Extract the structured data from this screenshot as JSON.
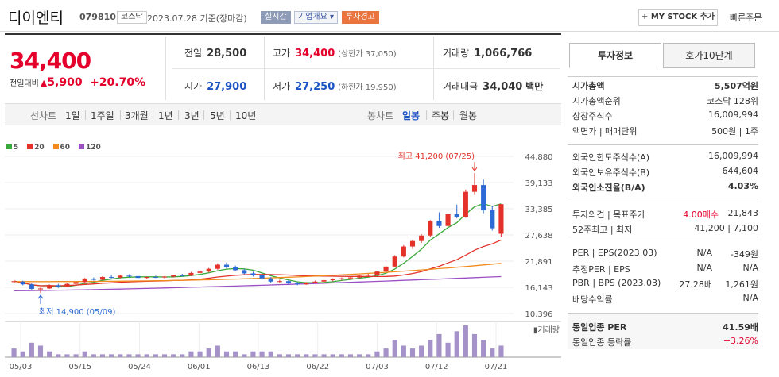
{
  "header": {
    "name": "디이엔티",
    "code": "079810",
    "market": "코스닥",
    "date": "2023.07.28  기준(장마감)",
    "realtime": "실시간",
    "overview": "기업개요 ▾",
    "warning": "투자경고",
    "mystock": "+ MY STOCK 추가",
    "quick_order": "빠른주문"
  },
  "price": {
    "current": "34,400",
    "diff_label": "전일대비",
    "diff_arrow": "▲",
    "diff": "5,900",
    "rate": "+20.70%"
  },
  "stats": {
    "prev_label": "전일",
    "prev": "28,500",
    "high_label": "고가",
    "high": "34,400",
    "upper_limit": "(상한가 37,050)",
    "volume_label": "거래량",
    "volume": "1,066,766",
    "open_label": "시가",
    "open": "27,900",
    "low_label": "저가",
    "low": "27,250",
    "lower_limit": "(하한가 19,950)",
    "amount_label": "거래대금",
    "amount": "34,040",
    "amount_unit": "백만"
  },
  "period_bar": {
    "left_label": "선차트",
    "left_items": [
      "1일",
      "1주일",
      "3개월",
      "1년",
      "3년",
      "5년",
      "10년"
    ],
    "right_label": "봉차트",
    "right_items": [
      "일봉",
      "주봉",
      "월봉"
    ],
    "active_right": "일봉"
  },
  "legend": [
    {
      "label": "5",
      "color": "#3aa83a"
    },
    {
      "label": "20",
      "color": "#e4322b"
    },
    {
      "label": "60",
      "color": "#f08c1e"
    },
    {
      "label": "120",
      "color": "#9b4fc4"
    }
  ],
  "chart_data": {
    "type": "candlestick",
    "high_annotation": "최고 41,200 (07/25)",
    "low_annotation": "최저 14,900 (05/09)",
    "y_ticks": [
      "44,880",
      "39,133",
      "33,385",
      "27,638",
      "21,891",
      "16,143",
      "10,396"
    ],
    "x_ticks": [
      "05/03",
      "05/15",
      "05/24",
      "06/01",
      "06/13",
      "06/22",
      "07/03",
      "07/12",
      "07/21"
    ],
    "volume_label": "거래량",
    "ylim": [
      10396,
      44880
    ],
    "candles": [
      [
        17300,
        17800,
        16900,
        17500
      ],
      [
        17400,
        17600,
        16600,
        16800
      ],
      [
        16800,
        17100,
        15600,
        15800
      ],
      [
        15700,
        16100,
        14900,
        15900
      ],
      [
        15900,
        16800,
        15800,
        16600
      ],
      [
        16600,
        16900,
        16000,
        16300
      ],
      [
        16300,
        17000,
        16200,
        16900
      ],
      [
        16900,
        17500,
        16700,
        17300
      ],
      [
        17300,
        18200,
        17100,
        18000
      ],
      [
        18000,
        18300,
        17600,
        17800
      ],
      [
        17800,
        18600,
        17700,
        18400
      ],
      [
        18400,
        18800,
        18100,
        18300
      ],
      [
        18300,
        18900,
        18100,
        18700
      ],
      [
        18700,
        19000,
        18400,
        18600
      ],
      [
        18600,
        18700,
        18000,
        18200
      ],
      [
        18200,
        18500,
        17900,
        18400
      ],
      [
        18400,
        18700,
        18200,
        18300
      ],
      [
        18300,
        18600,
        18100,
        18500
      ],
      [
        18500,
        18900,
        18300,
        18800
      ],
      [
        18800,
        19100,
        18500,
        18700
      ],
      [
        18700,
        19500,
        18600,
        19300
      ],
      [
        19300,
        19800,
        19100,
        19600
      ],
      [
        19600,
        20400,
        19400,
        20200
      ],
      [
        20200,
        21400,
        20000,
        21100
      ],
      [
        21100,
        21600,
        20300,
        20500
      ],
      [
        20500,
        20900,
        19700,
        19900
      ],
      [
        19900,
        20200,
        19000,
        19200
      ],
      [
        19200,
        19600,
        18500,
        18800
      ],
      [
        18800,
        19100,
        17800,
        18100
      ],
      [
        18100,
        18400,
        17200,
        17400
      ],
      [
        17400,
        17800,
        17000,
        17500
      ],
      [
        17500,
        17700,
        16800,
        17000
      ],
      [
        17000,
        17300,
        16600,
        16800
      ],
      [
        16800,
        17300,
        16700,
        17100
      ],
      [
        17100,
        17600,
        17000,
        17400
      ],
      [
        17400,
        17900,
        17300,
        17700
      ],
      [
        17700,
        18100,
        17500,
        17900
      ],
      [
        17900,
        18300,
        17700,
        18100
      ],
      [
        18100,
        18500,
        17900,
        18300
      ],
      [
        18300,
        18900,
        18100,
        18700
      ],
      [
        18700,
        19100,
        18400,
        18900
      ],
      [
        18900,
        19800,
        18800,
        19600
      ],
      [
        19600,
        20900,
        19500,
        20700
      ],
      [
        20700,
        23200,
        20600,
        22900
      ],
      [
        22900,
        25400,
        22700,
        25100
      ],
      [
        25100,
        26600,
        24600,
        26300
      ],
      [
        26300,
        27800,
        25900,
        27500
      ],
      [
        27500,
        30900,
        27300,
        30700
      ],
      [
        30700,
        32600,
        29200,
        29600
      ],
      [
        29600,
        32400,
        29400,
        32200
      ],
      [
        32200,
        34300,
        31300,
        31600
      ],
      [
        31600,
        37600,
        31400,
        37100
      ],
      [
        37100,
        41200,
        36400,
        38600
      ],
      [
        38600,
        39800,
        32400,
        33100
      ],
      [
        33100,
        34100,
        28600,
        29100
      ],
      [
        27900,
        34400,
        27250,
        34400
      ]
    ],
    "volumes": [
      3,
      2,
      5,
      4,
      2,
      1,
      1,
      1,
      2,
      1,
      1,
      1,
      1,
      1,
      1,
      1,
      1,
      1,
      1,
      1,
      2,
      2,
      3,
      4,
      2,
      2,
      1,
      2,
      2,
      2,
      1,
      1,
      1,
      1,
      1,
      1,
      1,
      1,
      1,
      1,
      1,
      2,
      3,
      6,
      4,
      3,
      4,
      6,
      8,
      5,
      9,
      11,
      8,
      6,
      3,
      4
    ]
  },
  "tabs": {
    "info": "투자정보",
    "quote": "호가10단계"
  },
  "info": {
    "market_cap_label": "시가총액",
    "market_cap": "5,507억원",
    "rank_label": "시가총액순위",
    "rank": "코스닥 128위",
    "shares_label": "상장주식수",
    "shares": "16,009,994",
    "par_label": "액면가 | 매매단위",
    "par": "500원 | 1주",
    "foreign_limit_label": "외국인한도주식수(A)",
    "foreign_limit": "16,009,994",
    "foreign_hold_label": "외국인보유주식수(B)",
    "foreign_hold": "644,604",
    "foreign_rate_label": "외국인소진율(B/A)",
    "foreign_rate": "4.03%",
    "opinion_label": "투자의견 | 목표주가",
    "opinion": "4.00매수",
    "target": "21,843",
    "week52_label": "52주최고 | 최저",
    "week52": "41,200 | 7,100",
    "per_label": "PER | EPS(2023.03)",
    "per": "N/A",
    "eps": "-349원",
    "est_label": "추정PER | EPS",
    "est_per": "N/A",
    "est_eps": "N/A",
    "pbr_label": "PBR | BPS (2023.03)",
    "pbr": "27.28배",
    "bps": "1,261원",
    "div_label": "배당수익률",
    "div": "N/A",
    "sector_per_label": "동일업종 PER",
    "sector_per": "41.59배",
    "sector_rate_label": "동일업종 등락률",
    "sector_rate": "+3.26%"
  }
}
